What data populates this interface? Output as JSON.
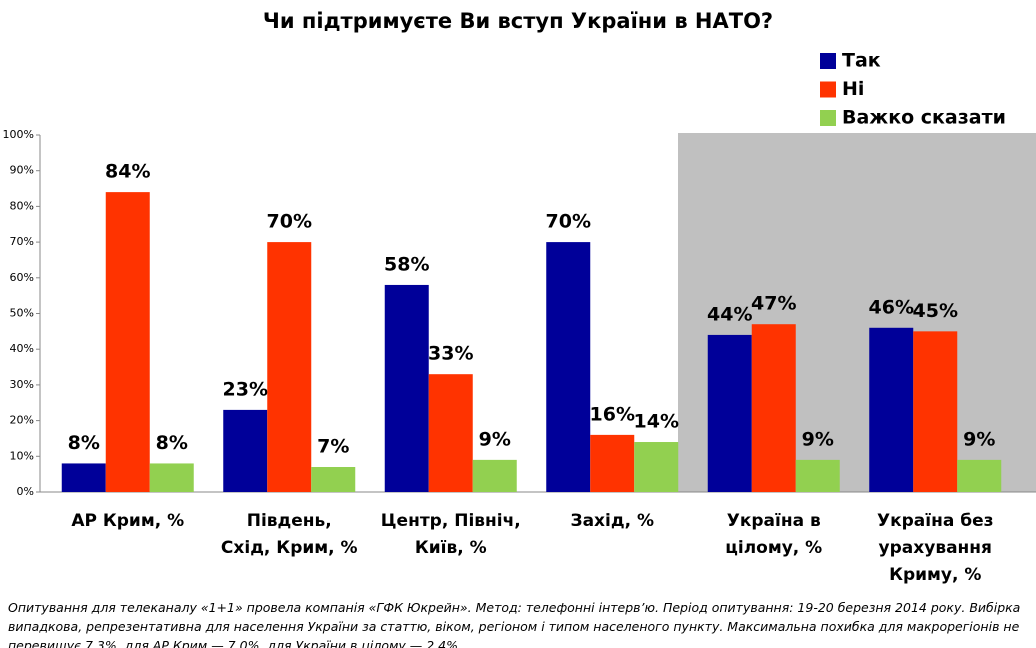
{
  "chart_data": {
    "type": "bar",
    "title": "Чи підтримуєте Ви вступ України в НАТО?",
    "categories": [
      "АР Крим, %",
      "Південь, Схід, Крим, %",
      "Центр, Північ, Київ, %",
      "Захід, %",
      "Україна в цілому, %",
      "Україна без урахування Криму, %"
    ],
    "series": [
      {
        "name": "Так",
        "color": "#000099",
        "values": [
          8,
          23,
          58,
          70,
          44,
          46
        ],
        "value_labels": [
          "8%",
          "23%",
          "58%",
          "70%",
          "44%",
          "46%"
        ]
      },
      {
        "name": "Ні",
        "color": "#ff3300",
        "values": [
          84,
          70,
          33,
          16,
          47,
          45
        ],
        "value_labels": [
          "84%",
          "70%",
          "33%",
          "16%",
          "47%",
          "45%"
        ]
      },
      {
        "name": "Важко сказати",
        "color": "#92d050",
        "values": [
          8,
          7,
          9,
          14,
          9,
          9
        ],
        "value_labels": [
          "8%",
          "7%",
          "9%",
          "14%",
          "9%",
          "9%"
        ]
      }
    ],
    "ylim": [
      0,
      100
    ],
    "yticks": [
      {
        "value": 0,
        "label": "0%"
      },
      {
        "value": 10,
        "label": "10%"
      },
      {
        "value": 20,
        "label": "20%"
      },
      {
        "value": 30,
        "label": "30%"
      },
      {
        "value": 40,
        "label": "40%"
      },
      {
        "value": 50,
        "label": "50%"
      },
      {
        "value": 60,
        "label": "60%"
      },
      {
        "value": 70,
        "label": "70%"
      },
      {
        "value": 80,
        "label": "80%"
      },
      {
        "value": 90,
        "label": "90%"
      },
      {
        "value": 100,
        "label": "100%"
      }
    ],
    "highlight_categories": [
      4,
      5
    ],
    "highlight_color": "#c0c0c0",
    "legend": "top-right",
    "note": "Опитування для телеканалу «1+1» провела компанія «ГФК Юкрейн». Метод: телефонні інтерв’ю. Період опитування: 19-20 березня 2014 року. Вибірка випадкова, репрезентативна для населення України за статтю, віком, регіоном і типом населеного пункту. Максимальна похибка для макрорегіонів не перевищує 7,3%, для АР Крим — 7,0%, для України в цілому — 2,4%."
  }
}
